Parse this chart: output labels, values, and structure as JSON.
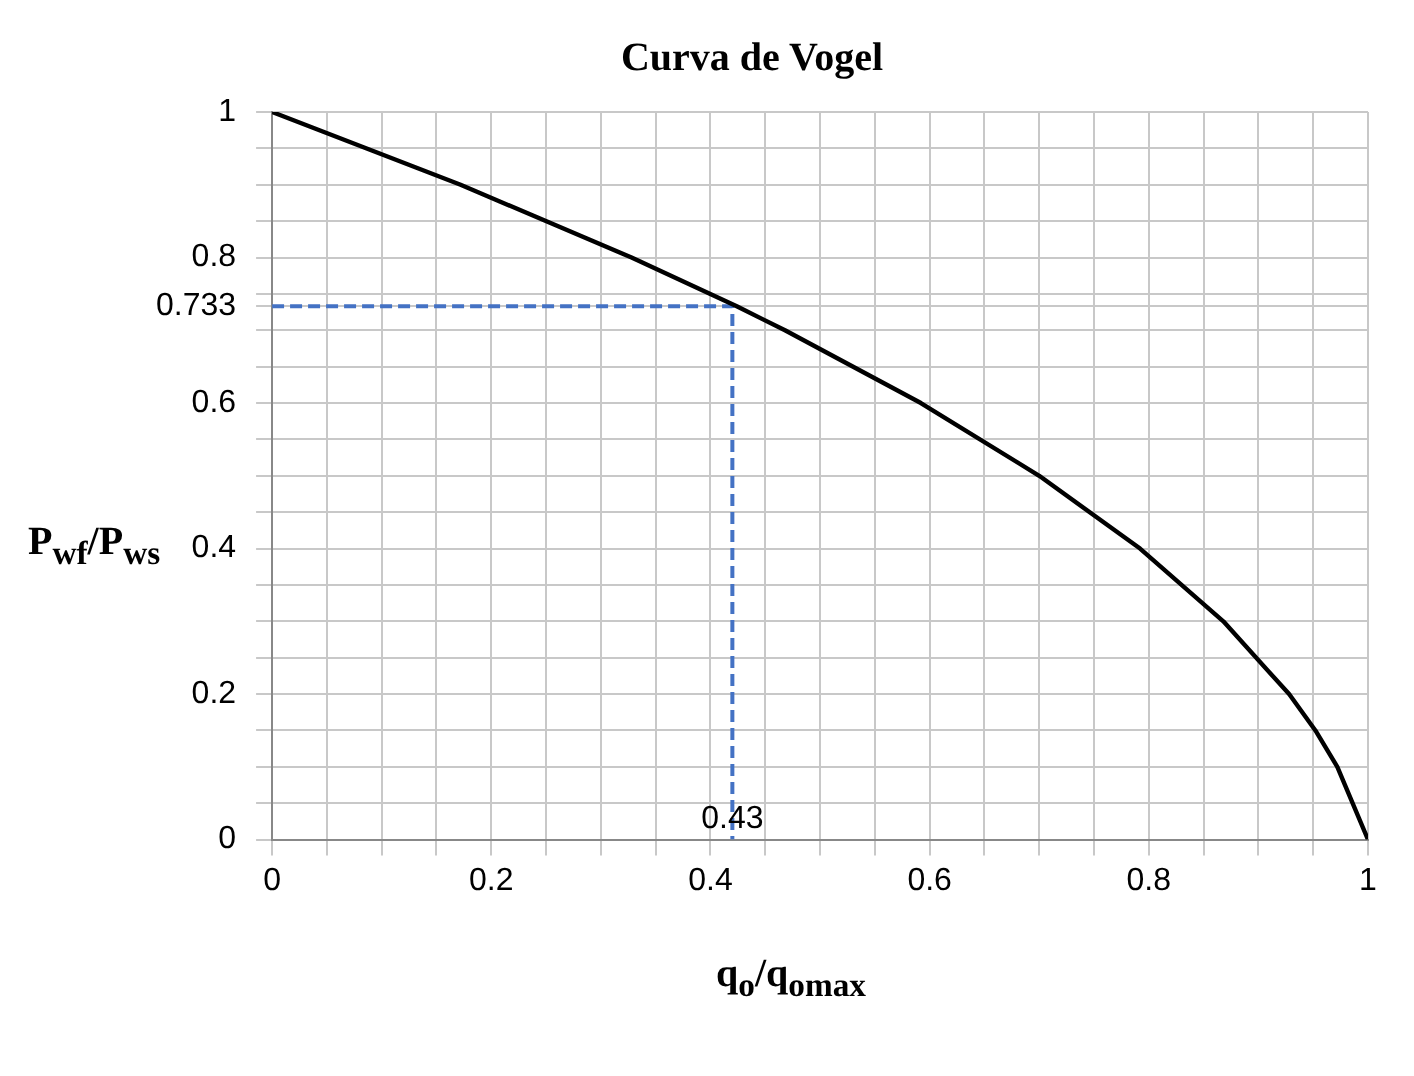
{
  "chart_data": {
    "type": "line",
    "title": "Curva de Vogel",
    "xlabel": "q$_{o}$/q$_{omax}$",
    "ylabel": "P$_{wf}$/P$_{ws}$",
    "xlim": [
      0,
      1
    ],
    "ylim": [
      0,
      1
    ],
    "xticks": [
      0,
      {
        "value": 0.05,
        "label": null
      },
      {
        "value": 0.1,
        "label": null
      },
      {
        "value": 0.15,
        "label": null
      },
      0.2,
      {
        "value": 0.25,
        "label": null
      },
      {
        "value": 0.3,
        "label": null
      },
      {
        "value": 0.35,
        "label": null
      },
      0.4,
      {
        "value": 0.45,
        "label": null
      },
      {
        "value": 0.5,
        "label": null
      },
      {
        "value": 0.55,
        "label": null
      },
      0.6,
      {
        "value": 0.65,
        "label": null
      },
      {
        "value": 0.7,
        "label": null
      },
      {
        "value": 0.75,
        "label": null
      },
      0.8,
      {
        "value": 0.85,
        "label": null
      },
      {
        "value": 0.9,
        "label": null
      },
      {
        "value": 0.95,
        "label": null
      },
      1
    ],
    "yticks": [
      0,
      {
        "value": 0.05,
        "label": null
      },
      {
        "value": 0.1,
        "label": null
      },
      {
        "value": 0.15,
        "label": null
      },
      0.2,
      {
        "value": 0.25,
        "label": null
      },
      {
        "value": 0.3,
        "label": null
      },
      {
        "value": 0.35,
        "label": null
      },
      0.4,
      {
        "value": 0.45,
        "label": null
      },
      {
        "value": 0.5,
        "label": null
      },
      {
        "value": 0.55,
        "label": null
      },
      0.6,
      {
        "value": 0.65,
        "label": null
      },
      {
        "value": 0.7,
        "label": null
      },
      {
        "value": 0.733,
        "label": "0.733"
      },
      {
        "value": 0.75,
        "label": null
      },
      0.8,
      {
        "value": 0.85,
        "label": null
      },
      {
        "value": 0.9,
        "label": null
      },
      {
        "value": 0.95,
        "label": null
      },
      1
    ],
    "grid": true,
    "marker": "none",
    "series": [
      {
        "color": "#000000",
        "line_style": "solid",
        "x": [
          0,
          0.172,
          0.328,
          0.424,
          0.468,
          0.592,
          0.7,
          0.792,
          0.868,
          0.928,
          0.952,
          0.972,
          1
        ],
        "values": [
          1,
          0.9,
          0.8,
          0.733,
          0.7,
          0.6,
          0.5,
          0.4,
          0.3,
          0.2,
          0.15,
          0.1,
          0
        ]
      },
      {
        "color": "#4472c4",
        "line_style": "dashed",
        "x": [
          0,
          0.42,
          0.42
        ],
        "values": [
          0.733,
          0.733,
          0
        ]
      }
    ],
    "annotations": [
      {
        "text": "0.43",
        "x": 0.42,
        "y": 0
      }
    ]
  }
}
